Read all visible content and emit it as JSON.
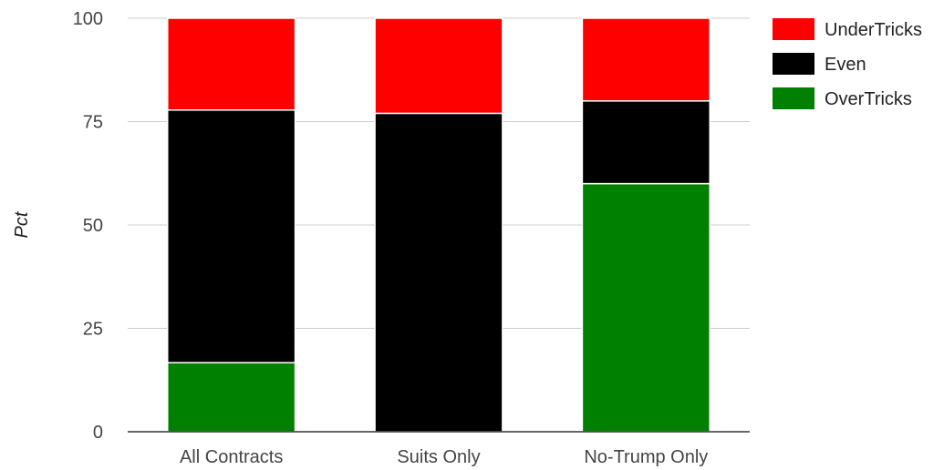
{
  "chart_data": {
    "type": "bar",
    "stacked": true,
    "categories": [
      "All Contracts",
      "Suits Only",
      "No-Trump Only"
    ],
    "series": [
      {
        "name": "OverTricks",
        "color": "#008000",
        "values": [
          16.7,
          0,
          60
        ]
      },
      {
        "name": "Even",
        "color": "#000000",
        "values": [
          61.1,
          77,
          20
        ]
      },
      {
        "name": "UnderTricks",
        "color": "#ff0000",
        "values": [
          22.2,
          23,
          20
        ]
      }
    ],
    "legend_order": [
      "UnderTricks",
      "Even",
      "OverTricks"
    ],
    "ylabel": "Pct",
    "xlabel": "",
    "ylim": [
      0,
      100
    ],
    "yticks": [
      0,
      25,
      50,
      75,
      100
    ],
    "grid": true,
    "legend_position": "right"
  }
}
